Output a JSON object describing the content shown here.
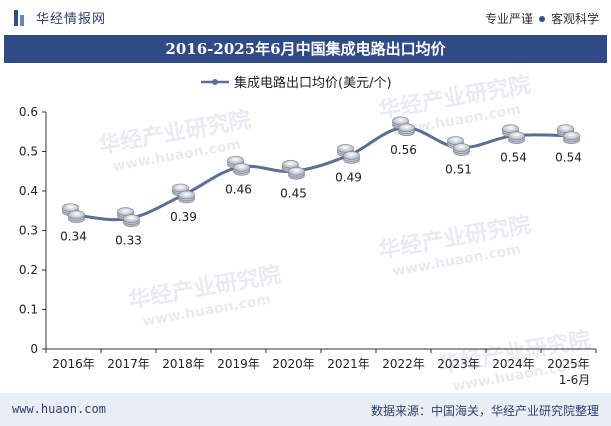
{
  "header": {
    "brand": "华经情报网",
    "tagline_left": "专业严谨",
    "tagline_right": "客观科学"
  },
  "chart_data": {
    "type": "line",
    "title": "2016-2025年6月中国集成电路出口均价",
    "categories": [
      "2016年",
      "2017年",
      "2018年",
      "2019年",
      "2020年",
      "2021年",
      "2022年",
      "2023年",
      "2024年",
      "2025年\n1-6月"
    ],
    "series": [
      {
        "name": "集成电路出口均价(美元/个)",
        "values": [
          0.34,
          0.33,
          0.39,
          0.46,
          0.45,
          0.49,
          0.56,
          0.51,
          0.54,
          0.54
        ],
        "labels": [
          "0.34",
          "0.33",
          "0.39",
          "0.46",
          "0.45",
          "0.49",
          "0.56",
          "0.51",
          "0.54",
          "0.54"
        ]
      }
    ],
    "ylim": [
      0,
      0.6
    ],
    "yticks": [
      "0",
      "0.1",
      "0.2",
      "0.3",
      "0.4",
      "0.5",
      "0.6"
    ],
    "xlabel": "",
    "ylabel": "",
    "legend_position": "top-center",
    "line_color": "#5a6f96"
  },
  "watermark": {
    "text_cn": "华经产业研究院",
    "text_en": "www.huaon.com"
  },
  "footer": {
    "website": "www.huaon.com",
    "source": "数据来源：中国海关，华经产业研究院整理"
  }
}
